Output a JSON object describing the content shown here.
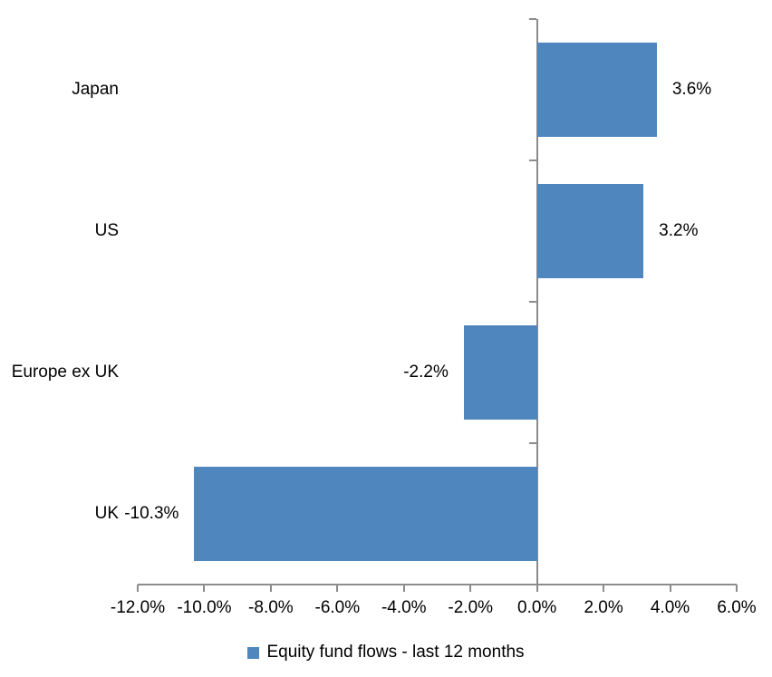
{
  "chart_data": {
    "type": "bar",
    "orientation": "horizontal",
    "title": "",
    "xlabel": "",
    "ylabel": "",
    "categories": [
      "Japan",
      "US",
      "Europe ex UK",
      "UK"
    ],
    "series": [
      {
        "name": "Equity fund flows - last 12 months",
        "values": [
          3.6,
          3.2,
          -2.2,
          -10.3
        ],
        "value_labels": [
          "3.6%",
          "3.2%",
          "-2.2%",
          "-10.3%"
        ]
      }
    ],
    "xlim": [
      -12,
      6
    ],
    "x_ticks": [
      -12,
      -10,
      -8,
      -6,
      -4,
      -2,
      0,
      2,
      4,
      6
    ],
    "x_tick_labels": [
      "-12.0%",
      "-10.0%",
      "-8.0%",
      "-6.0%",
      "-4.0%",
      "-2.0%",
      "0.0%",
      "2.0%",
      "4.0%",
      "6.0%"
    ],
    "grid": "off",
    "legend_position": "bottom-center",
    "legend_label": "Equity fund flows - last 12 months",
    "colors": {
      "bar": "#4F86BD",
      "axis": "#8C8C8C",
      "text": "#000000",
      "background": "#FFFFFF"
    }
  }
}
